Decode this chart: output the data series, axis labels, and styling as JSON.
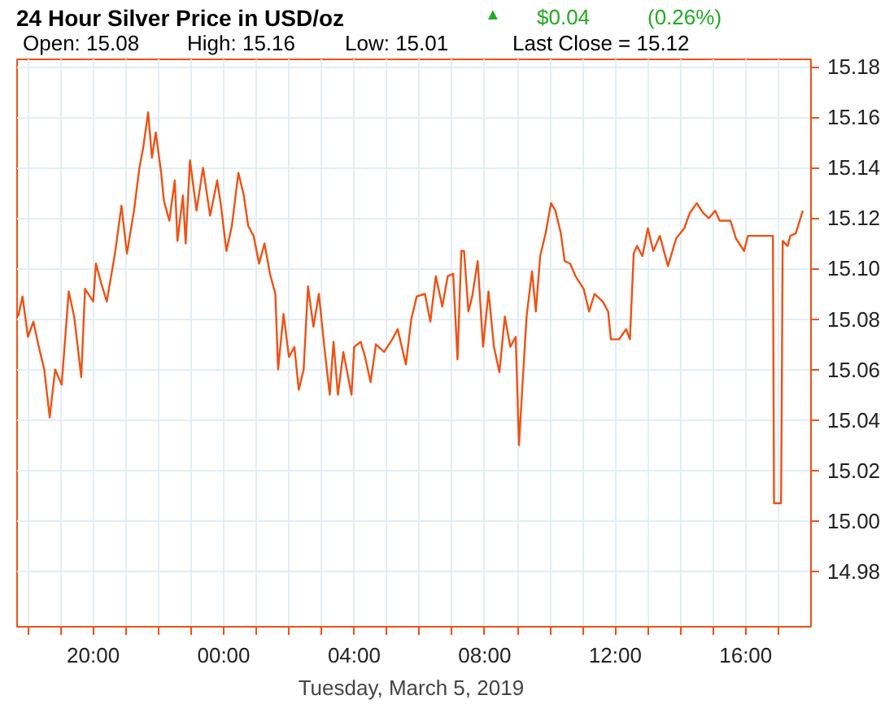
{
  "chart_data": {
    "type": "line",
    "title": "24 Hour Silver Price in USD/oz",
    "xlabel": "Tuesday, March  5, 2019",
    "annotations": [
      "▲",
      "$0.04",
      "(0.26%)",
      "Open: 15.08",
      "High: 15.16",
      "Low: 15.01",
      "Last Close = 15.12"
    ],
    "color": "#ee5214",
    "grid": true,
    "line_style": "solid",
    "x": [
      "2019-03-04T17:42",
      "2019-03-04T17:50",
      "2019-03-04T18:00",
      "2019-03-04T18:10",
      "2019-03-04T18:20",
      "2019-03-04T18:30",
      "2019-03-04T18:40",
      "2019-03-04T18:50",
      "2019-03-04T19:02",
      "2019-03-04T19:15",
      "2019-03-04T19:25",
      "2019-03-04T19:38",
      "2019-03-04T19:45",
      "2019-03-04T20:00",
      "2019-03-04T20:05",
      "2019-03-04T20:15",
      "2019-03-04T20:25",
      "2019-03-04T20:40",
      "2019-03-04T20:52",
      "2019-03-04T21:02",
      "2019-03-04T21:15",
      "2019-03-04T21:25",
      "2019-03-04T21:32",
      "2019-03-04T21:41",
      "2019-03-04T21:48",
      "2019-03-04T21:55",
      "2019-03-04T22:05",
      "2019-03-04T22:10",
      "2019-03-04T22:20",
      "2019-03-04T22:30",
      "2019-03-04T22:35",
      "2019-03-04T22:45",
      "2019-03-04T22:50",
      "2019-03-04T22:58",
      "2019-03-04T23:10",
      "2019-03-04T23:22",
      "2019-03-04T23:35",
      "2019-03-04T23:48",
      "2019-03-04T23:55",
      "2019-03-05T00:05",
      "2019-03-05T00:15",
      "2019-03-05T00:27",
      "2019-03-05T00:37",
      "2019-03-05T00:45",
      "2019-03-05T00:55",
      "2019-03-05T01:05",
      "2019-03-05T01:15",
      "2019-03-05T01:25",
      "2019-03-05T01:35",
      "2019-03-05T01:40",
      "2019-03-05T01:50",
      "2019-03-05T02:00",
      "2019-03-05T02:10",
      "2019-03-05T02:18",
      "2019-03-05T02:27",
      "2019-03-05T02:35",
      "2019-03-05T02:45",
      "2019-03-05T02:55",
      "2019-03-05T03:05",
      "2019-03-05T03:15",
      "2019-03-05T03:22",
      "2019-03-05T03:30",
      "2019-03-05T03:40",
      "2019-03-05T03:55",
      "2019-03-05T04:00",
      "2019-03-05T04:12",
      "2019-03-05T04:20",
      "2019-03-05T04:30",
      "2019-03-05T04:40",
      "2019-03-05T04:55",
      "2019-03-05T05:10",
      "2019-03-05T05:20",
      "2019-03-05T05:35",
      "2019-03-05T05:45",
      "2019-03-05T05:55",
      "2019-03-05T06:10",
      "2019-03-05T06:20",
      "2019-03-05T06:30",
      "2019-03-05T06:42",
      "2019-03-05T06:52",
      "2019-03-05T07:02",
      "2019-03-05T07:10",
      "2019-03-05T07:17",
      "2019-03-05T07:22",
      "2019-03-05T07:30",
      "2019-03-05T07:37",
      "2019-03-05T07:47",
      "2019-03-05T07:57",
      "2019-03-05T08:07",
      "2019-03-05T08:17",
      "2019-03-05T08:27",
      "2019-03-05T08:37",
      "2019-03-05T08:47",
      "2019-03-05T08:57",
      "2019-03-05T09:03",
      "2019-03-05T09:10",
      "2019-03-05T09:17",
      "2019-03-05T09:27",
      "2019-03-05T09:34",
      "2019-03-05T09:42",
      "2019-03-05T09:52",
      "2019-03-05T10:02",
      "2019-03-05T10:10",
      "2019-03-05T10:20",
      "2019-03-05T10:27",
      "2019-03-05T10:37",
      "2019-03-05T10:47",
      "2019-03-05T11:02",
      "2019-03-05T11:12",
      "2019-03-05T11:22",
      "2019-03-05T11:37",
      "2019-03-05T11:47",
      "2019-03-05T11:52",
      "2019-03-05T12:07",
      "2019-03-05T12:20",
      "2019-03-05T12:27",
      "2019-03-05T12:34",
      "2019-03-05T12:40",
      "2019-03-05T12:50",
      "2019-03-05T13:00",
      "2019-03-05T13:10",
      "2019-03-05T13:22",
      "2019-03-05T13:37",
      "2019-03-05T13:52",
      "2019-03-05T14:07",
      "2019-03-05T14:17",
      "2019-03-05T14:30",
      "2019-03-05T14:42",
      "2019-03-05T14:52",
      "2019-03-05T15:04",
      "2019-03-05T15:12",
      "2019-03-05T15:32",
      "2019-03-05T15:42",
      "2019-03-05T15:57",
      "2019-03-05T16:04",
      "2019-03-05T16:50",
      "2019-03-05T16:52",
      "2019-03-05T17:05",
      "2019-03-05T17:08",
      "2019-03-05T17:17",
      "2019-03-05T17:22",
      "2019-03-05T17:32",
      "2019-03-05T17:45"
    ],
    "values": [
      15.081,
      15.089,
      15.073,
      15.079,
      15.069,
      15.06,
      15.041,
      15.06,
      15.054,
      15.091,
      15.081,
      15.057,
      15.092,
      15.087,
      15.102,
      15.094,
      15.087,
      15.106,
      15.125,
      15.106,
      15.123,
      15.14,
      15.148,
      15.162,
      15.144,
      15.154,
      15.138,
      15.127,
      15.119,
      15.135,
      15.111,
      15.129,
      15.11,
      15.143,
      15.123,
      15.14,
      15.121,
      15.135,
      15.125,
      15.107,
      15.117,
      15.138,
      15.129,
      15.117,
      15.113,
      15.102,
      15.11,
      15.098,
      15.09,
      15.06,
      15.082,
      15.065,
      15.069,
      15.052,
      15.06,
      15.093,
      15.077,
      15.09,
      15.069,
      15.05,
      15.071,
      15.05,
      15.067,
      15.05,
      15.069,
      15.071,
      15.065,
      15.055,
      15.07,
      15.067,
      15.072,
      15.076,
      15.062,
      15.08,
      15.089,
      15.09,
      15.079,
      15.097,
      15.085,
      15.097,
      15.098,
      15.064,
      15.107,
      15.107,
      15.083,
      15.089,
      15.103,
      15.069,
      15.091,
      15.069,
      15.059,
      15.081,
      15.069,
      15.073,
      15.03,
      15.056,
      15.081,
      15.099,
      15.083,
      15.105,
      15.114,
      15.126,
      15.123,
      15.114,
      15.103,
      15.102,
      15.097,
      15.092,
      15.083,
      15.09,
      15.087,
      15.083,
      15.072,
      15.072,
      15.076,
      15.072,
      15.106,
      15.109,
      15.105,
      15.116,
      15.107,
      15.113,
      15.101,
      15.112,
      15.116,
      15.122,
      15.126,
      15.122,
      15.12,
      15.123,
      15.119,
      15.119,
      15.112,
      15.107,
      15.113,
      15.113,
      15.007,
      15.007,
      15.111,
      15.109,
      15.113,
      15.114,
      15.123
    ],
    "xlim": [
      "2019-03-04T17:40",
      "2019-03-05T18:00"
    ],
    "ylim": [
      14.958,
      15.183
    ],
    "xticks": [
      {
        "value": "2019-03-04T18:00",
        "label": null
      },
      {
        "value": "2019-03-04T19:00",
        "label": null
      },
      {
        "value": "2019-03-04T20:00",
        "label": "20:00"
      },
      {
        "value": "2019-03-04T21:00",
        "label": null
      },
      {
        "value": "2019-03-04T22:00",
        "label": null
      },
      {
        "value": "2019-03-04T23:00",
        "label": null
      },
      {
        "value": "2019-03-05T00:00",
        "label": "00:00"
      },
      {
        "value": "2019-03-05T01:00",
        "label": null
      },
      {
        "value": "2019-03-05T02:00",
        "label": null
      },
      {
        "value": "2019-03-05T03:00",
        "label": null
      },
      {
        "value": "2019-03-05T04:00",
        "label": "04:00"
      },
      {
        "value": "2019-03-05T05:00",
        "label": null
      },
      {
        "value": "2019-03-05T06:00",
        "label": null
      },
      {
        "value": "2019-03-05T07:00",
        "label": null
      },
      {
        "value": "2019-03-05T08:00",
        "label": "08:00"
      },
      {
        "value": "2019-03-05T09:00",
        "label": null
      },
      {
        "value": "2019-03-05T10:00",
        "label": null
      },
      {
        "value": "2019-03-05T11:00",
        "label": null
      },
      {
        "value": "2019-03-05T12:00",
        "label": "12:00"
      },
      {
        "value": "2019-03-05T13:00",
        "label": null
      },
      {
        "value": "2019-03-05T14:00",
        "label": null
      },
      {
        "value": "2019-03-05T15:00",
        "label": null
      },
      {
        "value": "2019-03-05T16:00",
        "label": "16:00"
      },
      {
        "value": "2019-03-05T17:00",
        "label": null
      }
    ],
    "yticks": [
      {
        "value": 14.98,
        "label": "14.98"
      },
      {
        "value": 15.0,
        "label": "15.00"
      },
      {
        "value": 15.02,
        "label": "15.02"
      },
      {
        "value": 15.04,
        "label": "15.04"
      },
      {
        "value": 15.06,
        "label": "15.06"
      },
      {
        "value": 15.08,
        "label": "15.08"
      },
      {
        "value": 15.1,
        "label": "15.10"
      },
      {
        "value": 15.12,
        "label": "15.12"
      },
      {
        "value": 15.14,
        "label": "15.14"
      },
      {
        "value": 15.16,
        "label": "15.16"
      },
      {
        "value": 15.18,
        "label": "15.18"
      }
    ]
  }
}
